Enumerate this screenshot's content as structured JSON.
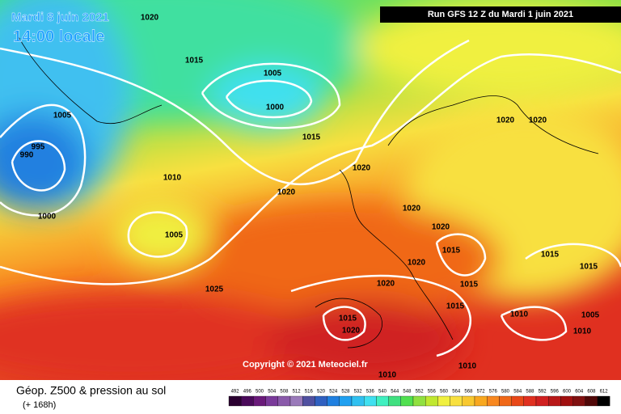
{
  "header": {
    "date": "Mardi 8 juin 2021",
    "time": "14:00 locale",
    "run": "Run GFS 12 Z du Mardi 1 juin 2021"
  },
  "copyright": "Copyright © 2021 Meteociel.fr",
  "footer": {
    "title": "Géop. Z500 & pression au sol",
    "lead": "(+ 168h)"
  },
  "isobar_labels": [
    "1020",
    "1015",
    "1005",
    "1000",
    "1005",
    "995",
    "990",
    "1015",
    "1010",
    "1020",
    "1020",
    "1000",
    "1005",
    "1020",
    "1020",
    "1015",
    "1020",
    "1015",
    "1015",
    "1020",
    "1015",
    "1015",
    "1025",
    "1015",
    "1020",
    "1010",
    "1005",
    "1010",
    "1010",
    "1010",
    "1020",
    "1020"
  ],
  "scale": {
    "values": [
      492,
      496,
      500,
      504,
      508,
      512,
      516,
      520,
      524,
      528,
      532,
      536,
      540,
      544,
      548,
      552,
      556,
      560,
      564,
      568,
      572,
      576,
      580,
      584,
      588,
      592,
      596,
      600,
      604,
      608,
      612
    ],
    "colors": [
      "#2a0030",
      "#4a0a5a",
      "#6a1a7a",
      "#7a3a9a",
      "#8a5aaa",
      "#9a7aba",
      "#5050a0",
      "#3060c0",
      "#2080e0",
      "#20a0f0",
      "#30c0f0",
      "#40e0f0",
      "#40f0c0",
      "#40e080",
      "#50e050",
      "#90e040",
      "#c0e830",
      "#f0f040",
      "#f8e040",
      "#f8c830",
      "#f8a820",
      "#f88820",
      "#f06818",
      "#e84818",
      "#e03020",
      "#d02020",
      "#b81818",
      "#a01010",
      "#801010",
      "#500808",
      "#000000"
    ]
  }
}
